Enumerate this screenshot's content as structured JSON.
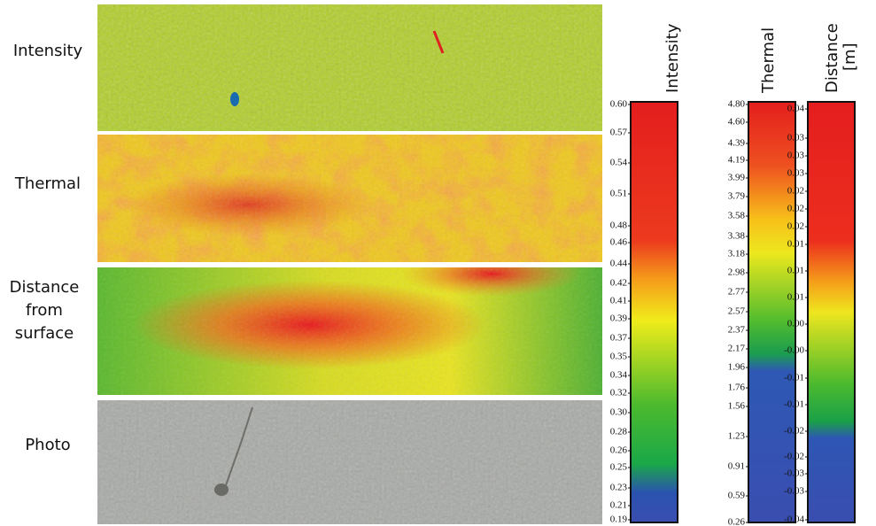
{
  "rows": [
    {
      "label": "Intensity"
    },
    {
      "label": "Thermal"
    },
    {
      "label": "Distance from surface"
    },
    {
      "label": "Photo"
    }
  ],
  "colorbars": [
    {
      "title": "Intensity",
      "ticks": [
        "0.60",
        "0.57",
        "0.54",
        "0.51",
        "0.48",
        "0.46",
        "0.44",
        "0.42",
        "0.41",
        "0.39",
        "0.37",
        "0.35",
        "0.34",
        "0.32",
        "0.30",
        "0.28",
        "0.26",
        "0.25",
        "0.23",
        "0.21",
        "0.19"
      ]
    },
    {
      "title": "Thermal",
      "ticks": [
        "4.80",
        "4.60",
        "4.39",
        "4.19",
        "3.99",
        "3.79",
        "3.58",
        "3.38",
        "3.18",
        "2.98",
        "2.77",
        "2.57",
        "2.37",
        "2.17",
        "1.96",
        "1.76",
        "1.56",
        "1.23",
        "0.91",
        "0.59",
        "0.26"
      ]
    },
    {
      "title": "Distance",
      "unit": "[m]",
      "ticks": [
        "0.04",
        "0.03",
        "0.03",
        "0.03",
        "0.02",
        "0.02",
        "0.02",
        "0.01",
        "0.01",
        "0.01",
        "0.00",
        "-0.00",
        "-0.01",
        "-0.01",
        "-0.02",
        "-0.02",
        "-0.03",
        "-0.03",
        "-0.04"
      ]
    }
  ]
}
